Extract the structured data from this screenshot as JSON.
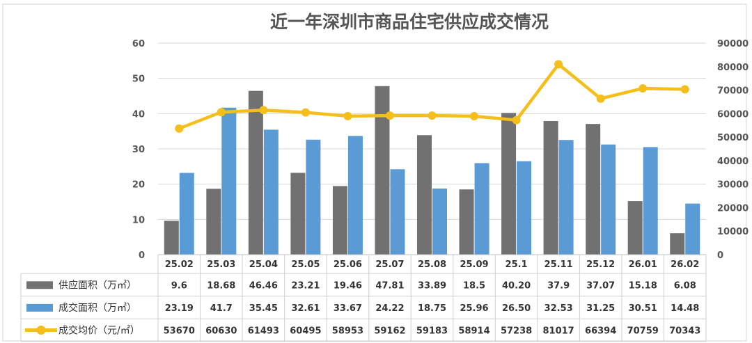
{
  "chart_data": {
    "type": "bar",
    "title": "近一年深圳市商品住宅供应成交情况",
    "categories": [
      "25.02",
      "25.03",
      "25.04",
      "25.05",
      "25.06",
      "25.07",
      "25.08",
      "25.09",
      "25.1",
      "25.11",
      "25.12",
      "26.01",
      "26.02"
    ],
    "y_left": {
      "min": 0,
      "max": 60,
      "step": 10
    },
    "y_right": {
      "min": 0,
      "max": 90000,
      "step": 10000
    },
    "grid": true,
    "legend_placement": "table-left",
    "series": [
      {
        "name": "供应面积（万㎡）",
        "type": "bar",
        "axis": "left",
        "color": "#717171",
        "values": [
          9.6,
          18.68,
          46.46,
          23.21,
          19.46,
          47.81,
          33.89,
          18.5,
          40.2,
          37.9,
          37.07,
          15.18,
          6.08
        ],
        "labels": [
          "9.6",
          "18.68",
          "46.46",
          "23.21",
          "19.46",
          "47.81",
          "33.89",
          "18.5",
          "40.20",
          "37.9",
          "37.07",
          "15.18",
          "6.08"
        ]
      },
      {
        "name": "成交面积（万㎡）",
        "type": "bar",
        "axis": "left",
        "color": "#5b9bd5",
        "values": [
          23.19,
          41.7,
          35.45,
          32.61,
          33.67,
          24.22,
          18.75,
          25.96,
          26.5,
          32.53,
          31.25,
          30.51,
          14.48
        ],
        "labels": [
          "23.19",
          "41.7",
          "35.45",
          "32.61",
          "33.67",
          "24.22",
          "18.75",
          "25.96",
          "26.50",
          "32.53",
          "31.25",
          "30.51",
          "14.48"
        ]
      },
      {
        "name": "成交均价（元/㎡）",
        "type": "line",
        "axis": "right",
        "color": "#f6be1b",
        "values": [
          53670,
          60630,
          61493,
          60495,
          58953,
          59162,
          59183,
          58914,
          57238,
          81017,
          66394,
          70759,
          70343
        ],
        "labels": [
          "53670",
          "60630",
          "61493",
          "60495",
          "58953",
          "59162",
          "59183",
          "58914",
          "57238",
          "81017",
          "66394",
          "70759",
          "70343"
        ]
      }
    ]
  }
}
